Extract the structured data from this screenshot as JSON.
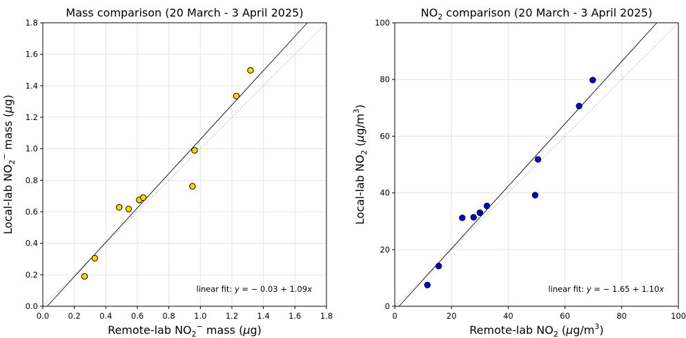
{
  "chart_data": [
    {
      "type": "scatter",
      "title": "Mass comparison (20 March - 3 April 2025)",
      "xlabel": "Remote-lab NO₂⁻ mass (µg)",
      "ylabel": "Local-lab NO₂⁻ mass (µg)",
      "xlim": [
        0,
        1.8
      ],
      "ylim": [
        0,
        1.8
      ],
      "xticks": [
        "0.0",
        "0.2",
        "0.4",
        "0.6",
        "0.8",
        "1.0",
        "1.2",
        "1.4",
        "1.6",
        "1.8"
      ],
      "yticks": [
        "0.0",
        "0.2",
        "0.4",
        "0.6",
        "0.8",
        "1.0",
        "1.2",
        "1.4",
        "1.6",
        "1.8"
      ],
      "grid": true,
      "marker_color": "#ffd700",
      "points": [
        {
          "x": 0.265,
          "y": 0.19
        },
        {
          "x": 0.33,
          "y": 0.305
        },
        {
          "x": 0.485,
          "y": 0.628
        },
        {
          "x": 0.545,
          "y": 0.618
        },
        {
          "x": 0.612,
          "y": 0.675
        },
        {
          "x": 0.638,
          "y": 0.69
        },
        {
          "x": 0.95,
          "y": 0.762
        },
        {
          "x": 0.963,
          "y": 0.99
        },
        {
          "x": 1.228,
          "y": 1.335
        },
        {
          "x": 1.318,
          "y": 1.498
        }
      ],
      "fit": {
        "intercept": -0.03,
        "slope": 1.09
      },
      "annotation": "linear fit: y = − 0.03 + 1.09x"
    },
    {
      "type": "scatter",
      "title": "NO₂ comparison (20 March - 3 April 2025)",
      "xlabel": "Remote-lab NO₂ (µg/m³)",
      "ylabel": "Local-lab NO₂ (µg/m³)",
      "xlim": [
        0,
        100
      ],
      "ylim": [
        0,
        100
      ],
      "xticks": [
        "0",
        "20",
        "40",
        "60",
        "80",
        "100"
      ],
      "yticks": [
        "0",
        "20",
        "40",
        "60",
        "80",
        "100"
      ],
      "grid": true,
      "marker_color": "#0000dd",
      "points": [
        {
          "x": 11.5,
          "y": 7.5
        },
        {
          "x": 15.5,
          "y": 14.2
        },
        {
          "x": 23.8,
          "y": 31.2
        },
        {
          "x": 27.8,
          "y": 31.4
        },
        {
          "x": 30.0,
          "y": 33.0
        },
        {
          "x": 32.5,
          "y": 35.4
        },
        {
          "x": 49.5,
          "y": 39.2
        },
        {
          "x": 50.5,
          "y": 51.8
        },
        {
          "x": 65.0,
          "y": 70.6
        },
        {
          "x": 69.8,
          "y": 79.8
        }
      ],
      "fit": {
        "intercept": -1.65,
        "slope": 1.1
      },
      "annotation": "linear fit: y = − 1.65 + 1.10x"
    }
  ]
}
